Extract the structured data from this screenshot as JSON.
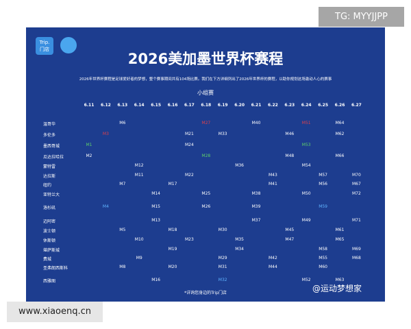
{
  "watermark_top": "TG: MYYJJPP",
  "logo": {
    "brand": "Trip.",
    "store": "门店"
  },
  "header": {
    "title": "2026美加墨世界杯赛程",
    "subtitle": "2026年世界杯赛程是足球爱好者的梦想，整个赛事期间共有104场比赛。我们在下方详细列出了2026年世界杯的赛程，以助你规划这场激动人心的赛事",
    "stage": "小组赛"
  },
  "table": {
    "columns": [
      "6.11",
      "6.12",
      "6.13",
      "6.14",
      "6.15",
      "6.16",
      "6.17",
      "6.18",
      "6.19",
      "6.20",
      "6.21",
      "6.22",
      "6.23",
      "6.24",
      "6.25",
      "6.26",
      "6.27"
    ],
    "rows": [
      {
        "city": "温哥华",
        "cells": [
          null,
          null,
          "M6",
          null,
          null,
          null,
          null,
          {
            "text": "M27",
            "color": "#e0404a"
          },
          null,
          null,
          "M40",
          null,
          null,
          {
            "text": "M51",
            "color": "#e0404a"
          },
          null,
          "M64",
          null
        ]
      },
      {
        "city": "多伦多",
        "cells": [
          null,
          {
            "text": "M3",
            "color": "#e0404a"
          },
          null,
          null,
          null,
          null,
          "M21",
          null,
          "M33",
          null,
          null,
          null,
          "M46",
          null,
          null,
          "M62",
          null
        ]
      },
      {
        "city": "墨西哥城",
        "cells": [
          {
            "text": "M1",
            "color": "#5fd06a"
          },
          null,
          null,
          null,
          null,
          null,
          "M24",
          null,
          null,
          null,
          null,
          null,
          null,
          {
            "text": "M53",
            "color": "#5fd06a"
          },
          null,
          null,
          null
        ]
      },
      {
        "city": "瓜达拉哈拉",
        "cells": [
          "M2",
          null,
          null,
          null,
          null,
          null,
          null,
          {
            "text": "M28",
            "color": "#5fd06a"
          },
          null,
          null,
          null,
          null,
          "M48",
          null,
          null,
          "M66",
          null
        ]
      },
      {
        "city": "蒙特雷",
        "cells": [
          null,
          null,
          null,
          "M12",
          null,
          null,
          null,
          null,
          null,
          "M36",
          null,
          null,
          null,
          "M54",
          null,
          null,
          null
        ]
      },
      {
        "city": "达拉斯",
        "cells": [
          null,
          null,
          null,
          "M11",
          null,
          null,
          "M22",
          null,
          null,
          null,
          null,
          "M43",
          null,
          null,
          "M57",
          null,
          "M70"
        ]
      },
      {
        "city": "纽约",
        "cells": [
          null,
          null,
          "M7",
          null,
          null,
          "M17",
          null,
          null,
          null,
          null,
          null,
          "M41",
          null,
          null,
          "M56",
          null,
          "M67"
        ]
      },
      {
        "city": "亚特兰大",
        "cells": [
          null,
          null,
          null,
          null,
          "M14",
          null,
          null,
          "M25",
          null,
          null,
          "M38",
          null,
          null,
          "M50",
          null,
          null,
          "M72"
        ]
      },
      {
        "city": "洛杉矶",
        "cells": [
          null,
          {
            "text": "M4",
            "color": "#5fb4ff"
          },
          null,
          null,
          "M15",
          null,
          null,
          "M26",
          null,
          null,
          "M39",
          null,
          null,
          null,
          {
            "text": "M59",
            "color": "#5fb4ff"
          },
          null,
          null
        ]
      },
      {
        "city": "迈阿密",
        "cells": [
          null,
          null,
          null,
          null,
          "M13",
          null,
          null,
          null,
          null,
          null,
          "M37",
          null,
          null,
          "M49",
          null,
          null,
          "M71"
        ]
      },
      {
        "city": "波士顿",
        "cells": [
          null,
          null,
          "M5",
          null,
          null,
          "M18",
          null,
          null,
          "M30",
          null,
          null,
          null,
          "M45",
          null,
          null,
          "M61",
          null
        ]
      },
      {
        "city": "休斯顿",
        "cells": [
          null,
          null,
          null,
          "M10",
          null,
          null,
          "M23",
          null,
          null,
          "M35",
          null,
          null,
          "M47",
          null,
          null,
          "M65",
          null
        ]
      },
      {
        "city": "堪萨斯城",
        "cells": [
          null,
          null,
          null,
          null,
          null,
          "M19",
          null,
          null,
          null,
          "M34",
          null,
          null,
          null,
          null,
          "M58",
          null,
          "M69"
        ]
      },
      {
        "city": "费城",
        "cells": [
          null,
          null,
          null,
          "M9",
          null,
          null,
          null,
          null,
          "M29",
          null,
          null,
          "M42",
          null,
          null,
          "M55",
          null,
          "M68"
        ]
      },
      {
        "city": "圣弗朗西斯科",
        "cells": [
          null,
          null,
          "M8",
          null,
          null,
          "M20",
          null,
          null,
          "M31",
          null,
          null,
          "M44",
          null,
          null,
          "M60",
          null,
          null
        ]
      },
      {
        "city": "西雅图",
        "cells": [
          null,
          null,
          null,
          null,
          "M16",
          null,
          null,
          null,
          {
            "text": "M32",
            "color": "#5fb4ff"
          },
          null,
          null,
          null,
          null,
          "M52",
          null,
          "M63",
          null
        ]
      }
    ]
  },
  "footnote": "*详询您身边的Trip门店",
  "watermark_bottom": "@运动梦想家",
  "site": "www.xiaoenq.cn"
}
